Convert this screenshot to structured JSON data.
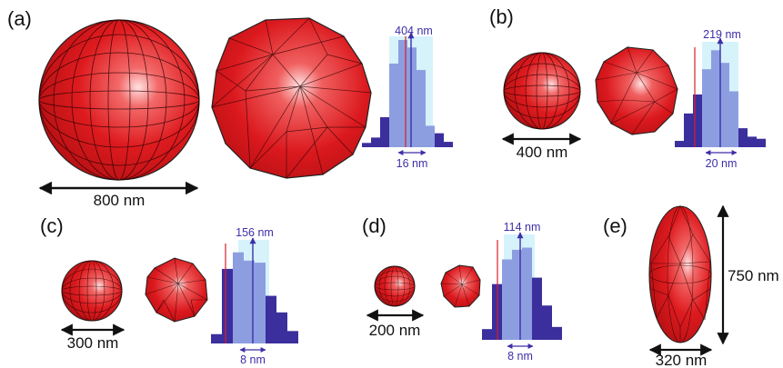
{
  "panels": [
    {
      "label": "(a)",
      "dimension": "800 nm",
      "histogram": {
        "mean_label": "404 nm",
        "width_label": "16 nm",
        "bars": [
          0.04,
          0.09,
          0.28,
          0.78,
          1.0,
          0.93,
          0.72,
          0.2,
          0.13,
          0.05
        ]
      }
    },
    {
      "label": "(b)",
      "dimension": "400 nm",
      "histogram": {
        "mean_label": "219 nm",
        "width_label": "20 nm",
        "bars": [
          0.06,
          0.32,
          0.5,
          0.74,
          0.92,
          0.8,
          0.53,
          0.18,
          0.1,
          0.08
        ]
      }
    },
    {
      "label": "(c)",
      "dimension": "300 nm",
      "histogram": {
        "mean_label": "156 nm",
        "width_label": "8 nm",
        "bars": [
          0.09,
          0.72,
          0.88,
          0.8,
          0.78,
          0.46,
          0.3,
          0.12
        ]
      }
    },
    {
      "label": "(d)",
      "dimension": "200 nm",
      "histogram": {
        "mean_label": "114 nm",
        "width_label": "8 nm",
        "bars": [
          0.1,
          0.52,
          0.75,
          0.84,
          0.86,
          0.58,
          0.32,
          0.12
        ]
      }
    },
    {
      "label": "(e)",
      "dimension_width": "320 nm",
      "dimension_height": "750 nm"
    }
  ],
  "colors": {
    "particle": "#d9161c",
    "bar_dark": "#3b2e9d",
    "bar_light": "#8d9ee0",
    "highlight_band": "#d6f3fb",
    "mean_marker": "#3d2fa8",
    "reference_line": "#d4202a"
  }
}
